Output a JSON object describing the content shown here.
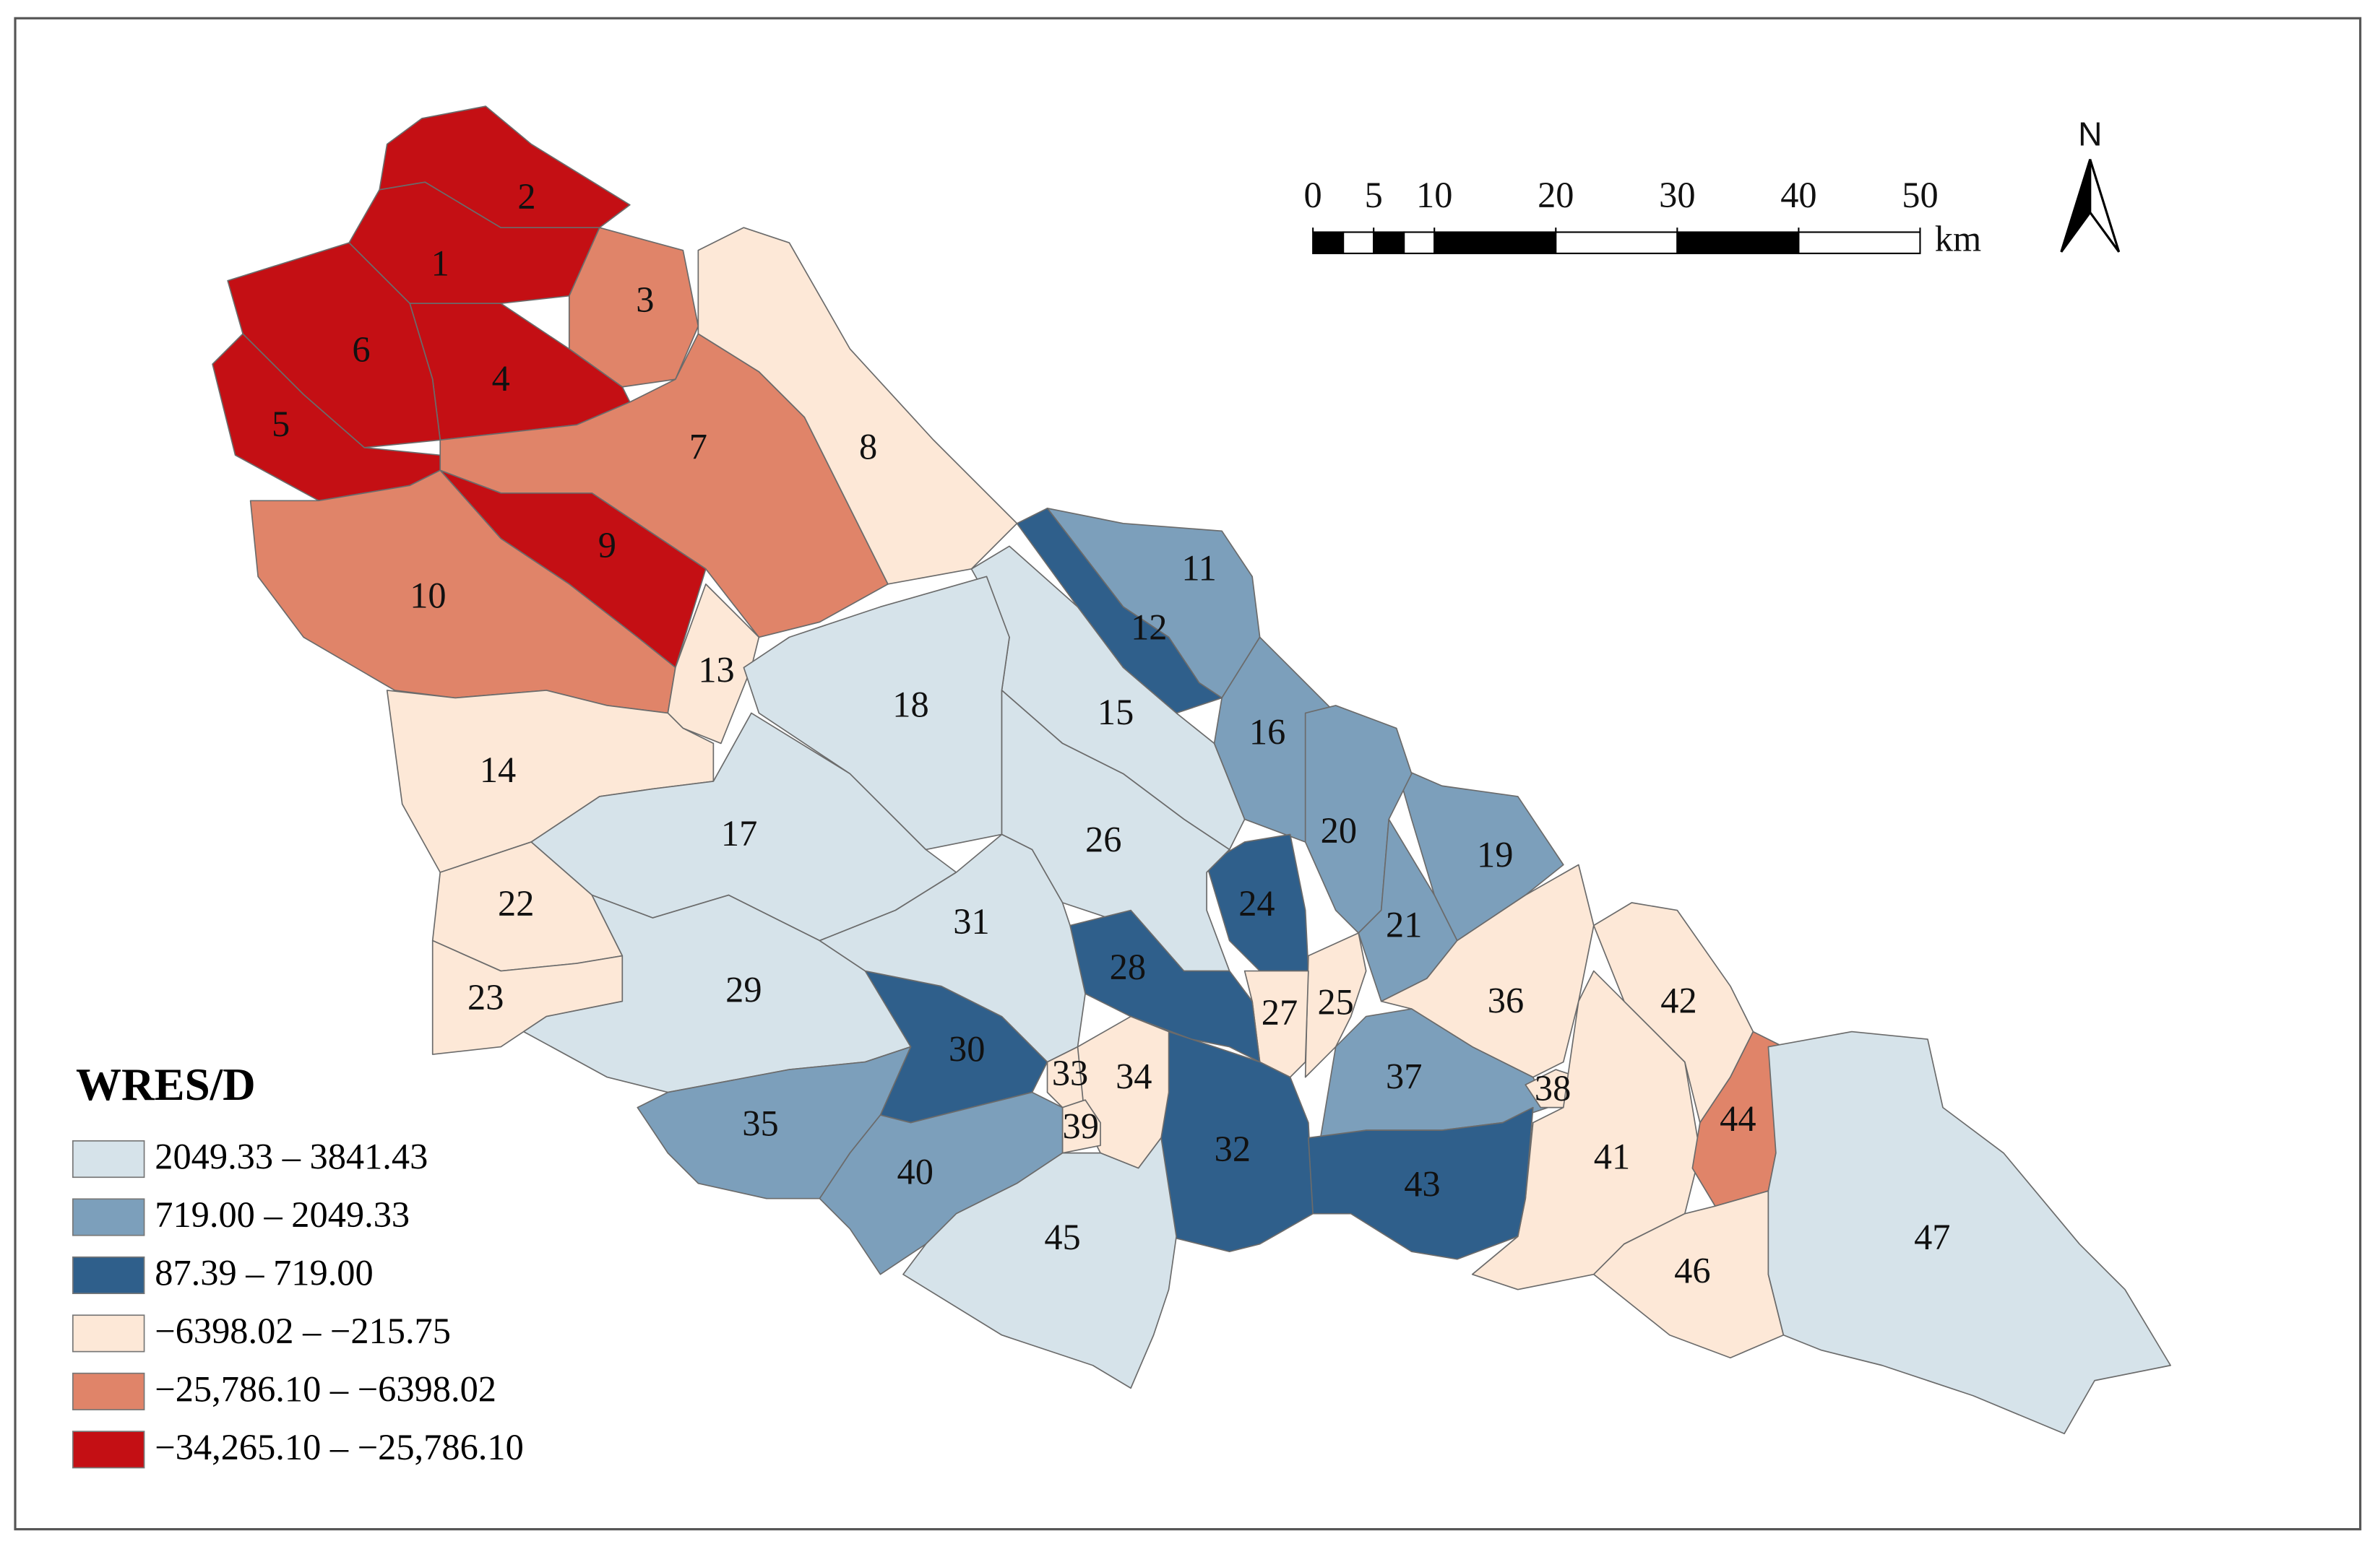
{
  "map": {
    "north_label": "N",
    "scale_bar": {
      "ticks": [
        0,
        5,
        10,
        20,
        30,
        40,
        50
      ],
      "unit": "km"
    },
    "legend": {
      "title": "WRES/D",
      "items": [
        {
          "label": "2049.33 – 3841.43",
          "color": "#d6e3ea"
        },
        {
          "label": "719.00 – 2049.33",
          "color": "#7c9fbb"
        },
        {
          "label": "87.39 – 719.00",
          "color": "#2f5f8b"
        },
        {
          "label": "−6398.02 – −215.75",
          "color": "#fde8d7"
        },
        {
          "label": "−25,786.10 – −6398.02",
          "color": "#e08469"
        },
        {
          "label": "−34,265.10 – −25,786.10",
          "color": "#c40f14"
        }
      ]
    },
    "regions": [
      {
        "label": "1",
        "color": "#c40f14"
      },
      {
        "label": "2",
        "color": "#c40f14"
      },
      {
        "label": "3",
        "color": "#e08469"
      },
      {
        "label": "4",
        "color": "#c40f14"
      },
      {
        "label": "5",
        "color": "#c40f14"
      },
      {
        "label": "6",
        "color": "#c40f14"
      },
      {
        "label": "7",
        "color": "#e08469"
      },
      {
        "label": "8",
        "color": "#fde8d7"
      },
      {
        "label": "9",
        "color": "#c40f14"
      },
      {
        "label": "10",
        "color": "#e08469"
      },
      {
        "label": "11",
        "color": "#7c9fbb"
      },
      {
        "label": "12",
        "color": "#2f5f8b"
      },
      {
        "label": "13",
        "color": "#fde8d7"
      },
      {
        "label": "14",
        "color": "#fde8d7"
      },
      {
        "label": "15",
        "color": "#d6e3ea"
      },
      {
        "label": "16",
        "color": "#7c9fbb"
      },
      {
        "label": "17",
        "color": "#d6e3ea"
      },
      {
        "label": "18",
        "color": "#d6e3ea"
      },
      {
        "label": "19",
        "color": "#7c9fbb"
      },
      {
        "label": "20",
        "color": "#7c9fbb"
      },
      {
        "label": "21",
        "color": "#7c9fbb"
      },
      {
        "label": "22",
        "color": "#fde8d7"
      },
      {
        "label": "23",
        "color": "#fde8d7"
      },
      {
        "label": "24",
        "color": "#2f5f8b"
      },
      {
        "label": "25",
        "color": "#fde8d7"
      },
      {
        "label": "26",
        "color": "#d6e3ea"
      },
      {
        "label": "27",
        "color": "#fde8d7"
      },
      {
        "label": "28",
        "color": "#2f5f8b"
      },
      {
        "label": "29",
        "color": "#d6e3ea"
      },
      {
        "label": "30",
        "color": "#2f5f8b"
      },
      {
        "label": "31",
        "color": "#d6e3ea"
      },
      {
        "label": "32",
        "color": "#2f5f8b"
      },
      {
        "label": "33",
        "color": "#fde8d7"
      },
      {
        "label": "34",
        "color": "#fde8d7"
      },
      {
        "label": "35",
        "color": "#7c9fbb"
      },
      {
        "label": "36",
        "color": "#fde8d7"
      },
      {
        "label": "37",
        "color": "#7c9fbb"
      },
      {
        "label": "38",
        "color": "#fde8d7"
      },
      {
        "label": "39",
        "color": "#fde8d7"
      },
      {
        "label": "40",
        "color": "#7c9fbb"
      },
      {
        "label": "41",
        "color": "#fde8d7"
      },
      {
        "label": "42",
        "color": "#fde8d7"
      },
      {
        "label": "43",
        "color": "#2f5f8b"
      },
      {
        "label": "44",
        "color": "#e08469"
      },
      {
        "label": "45",
        "color": "#d6e3ea"
      },
      {
        "label": "46",
        "color": "#fde8d7"
      },
      {
        "label": "47",
        "color": "#d6e3ea"
      }
    ]
  }
}
